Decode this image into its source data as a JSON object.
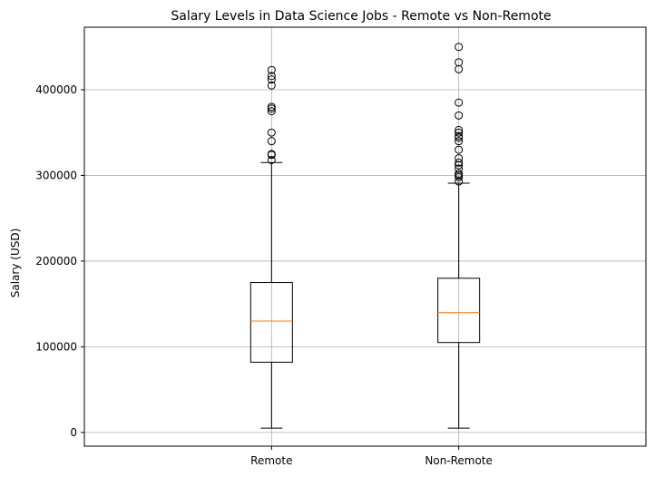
{
  "chart_data": {
    "type": "boxplot",
    "title": "Salary Levels in Data Science Jobs - Remote vs Non-Remote",
    "xlabel": "",
    "ylabel": "Salary (USD)",
    "ylim": [
      -16000,
      473000
    ],
    "yticks": [
      0,
      100000,
      200000,
      300000,
      400000
    ],
    "ytick_labels": [
      "0",
      "100000",
      "200000",
      "300000",
      "400000"
    ],
    "grid": true,
    "categories": [
      "Remote",
      "Non-Remote"
    ],
    "boxes": [
      {
        "label": "Remote",
        "whisker_low": 5000,
        "q1": 82000,
        "median": 130000,
        "q3": 175000,
        "whisker_high": 315000,
        "outliers": [
          318000,
          324000,
          325000,
          340000,
          350000,
          375000,
          378000,
          380000,
          405000,
          412000,
          416000,
          423000
        ]
      },
      {
        "label": "Non-Remote",
        "whisker_low": 5000,
        "q1": 105000,
        "median": 140000,
        "q3": 180000,
        "whisker_high": 291000,
        "outliers": [
          293000,
          298000,
          300000,
          302000,
          308000,
          312000,
          315000,
          320000,
          330000,
          340000,
          344000,
          346000,
          350000,
          353000,
          370000,
          385000,
          424000,
          432000,
          450000
        ]
      }
    ],
    "colors": {
      "box": "#000000",
      "median": "#ff7f0e",
      "grid": "#b0b0b0"
    }
  }
}
